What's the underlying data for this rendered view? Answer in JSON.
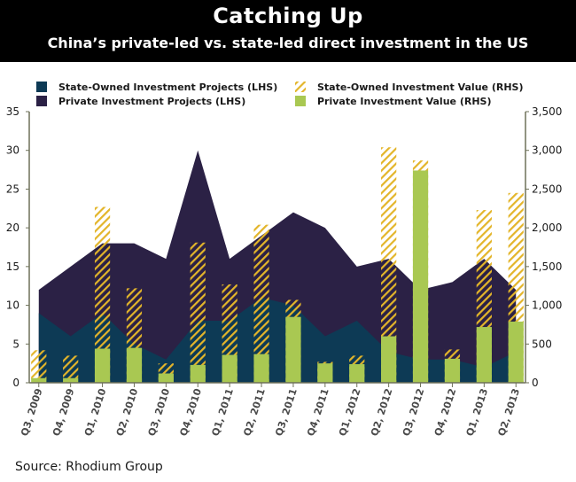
{
  "header": {
    "title": "Catching Up",
    "subtitle": "China’s private-led vs. state-led direct investment in the US"
  },
  "footer": {
    "source": "Source: Rhodium Group"
  },
  "colors": {
    "state_projects": "#0d3a55",
    "private_projects": "#2b2145",
    "state_value_hatch": "#e3b52a",
    "private_value": "#a9c852",
    "axis": "#6e7159"
  },
  "chart_data": {
    "type": "area",
    "categories": [
      "Q3, 2009",
      "Q4, 2009",
      "Q1, 2010",
      "Q2, 2010",
      "Q3, 2010",
      "Q4, 2010",
      "Q1, 2011",
      "Q2, 2011",
      "Q3, 2011",
      "Q4, 2011",
      "Q1, 2012",
      "Q2, 2012",
      "Q3, 2012",
      "Q4, 2012",
      "Q1, 2013",
      "Q2, 2013"
    ],
    "ylim_left": [
      0,
      35
    ],
    "ylim_right": [
      0,
      3500
    ],
    "yticks_left": [
      "0",
      "5",
      "10",
      "15",
      "20",
      "25",
      "30",
      "35"
    ],
    "yticks_right": [
      "0",
      "500",
      "1,000",
      "1,500",
      "2,000",
      "2,500",
      "3,000",
      "3,500"
    ],
    "legend": {
      "state_projects": "State-Owned Investment Projects (LHS)",
      "private_projects": "Private Investment Projects (LHS)",
      "state_value": "State-Owned Investment Value (RHS)",
      "private_value": "Private Investment Value (RHS)"
    },
    "series": [
      {
        "key": "state_projects",
        "name": "State-Owned Investment Projects (LHS)",
        "axis": "left",
        "kind": "area",
        "values": [
          9,
          6,
          9,
          5,
          3,
          8,
          8,
          11,
          10,
          6,
          8,
          4,
          3,
          3,
          2,
          4
        ]
      },
      {
        "key": "private_projects",
        "name": "Private Investment Projects (LHS)",
        "axis": "left",
        "kind": "area",
        "values": [
          12,
          15,
          18,
          18,
          16,
          30,
          16,
          19,
          22,
          20,
          15,
          16,
          12,
          13,
          16,
          12
        ]
      },
      {
        "key": "state_value",
        "name": "State-Owned Investment Value (RHS)",
        "axis": "right",
        "kind": "bar",
        "values": [
          420,
          350,
          2270,
          1220,
          250,
          1810,
          1270,
          2040,
          1070,
          270,
          350,
          3040,
          2870,
          430,
          2230,
          2450
        ]
      },
      {
        "key": "private_value",
        "name": "Private Investment Value (RHS)",
        "axis": "right",
        "kind": "bar",
        "values": [
          60,
          60,
          440,
          450,
          120,
          230,
          360,
          370,
          850,
          250,
          240,
          600,
          2740,
          310,
          720,
          790
        ]
      }
    ]
  }
}
